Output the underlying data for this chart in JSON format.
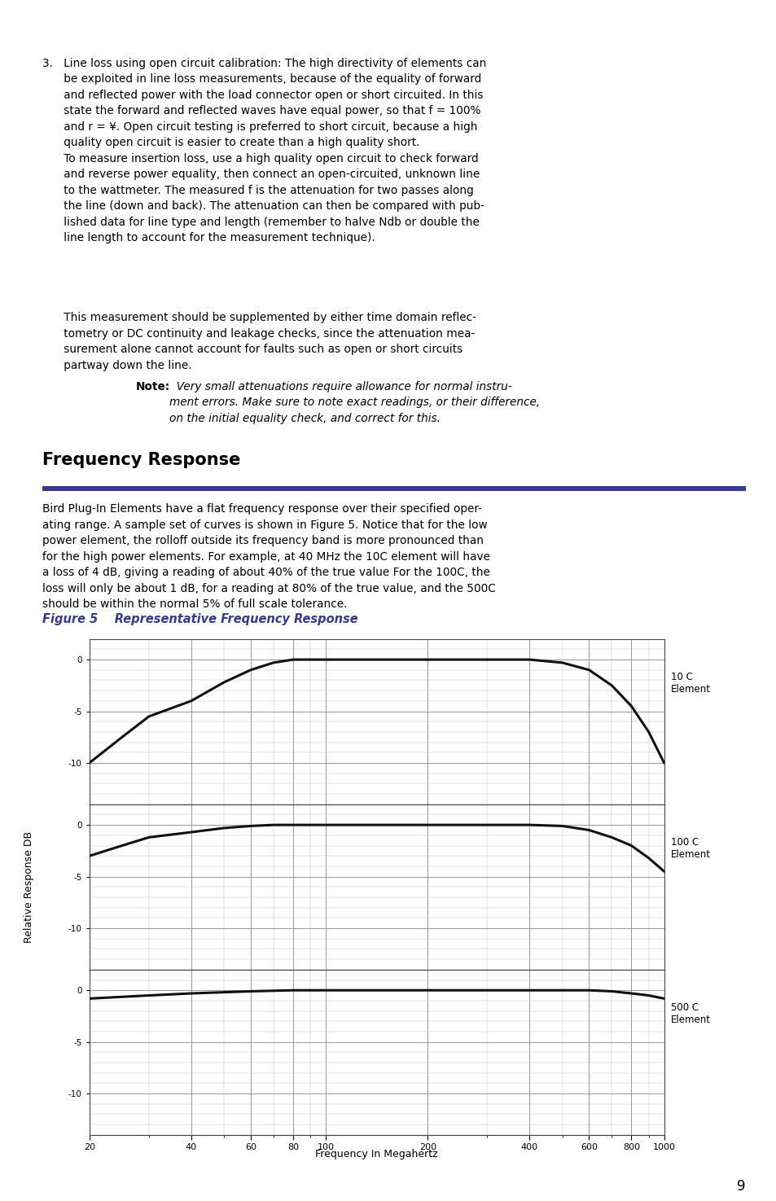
{
  "page_number": "9",
  "section_title": "Frequency Response",
  "section_rule_color": "#3a3a8c",
  "body_text2": "Bird Plug-In Elements have a flat frequency response over their specified oper-\nating range. A sample set of curves is shown in Figure 5. Notice that for the low\npower element, the rolloff outside its frequency band is more pronounced than\nfor the high power elements. For example, at 40 MHz the 10C element will have\na loss of 4 dB, giving a reading of about 40% of the true value For the 100C, the\nloss will only be about 1 dB, for a reading at 80% of the true value, and the 500C\nshould be within the normal 5% of full scale tolerance.",
  "figure_caption": "Figure 5    Representative Frequency Response",
  "figure_caption_color": "#3a3a8c",
  "para1_lines": [
    "3.   Line loss using open circuit calibration: The high directivity of elements can",
    "      be exploited in line loss measurements, because of the equality of forward",
    "      and reflected power with the load connector open or short circuited. In this",
    "      state the forward and reflected waves have equal power, so that f = 100%",
    "      and r = ¥. Open circuit testing is preferred to short circuit, because a high",
    "      quality open circuit is easier to create than a high quality short.",
    "      To measure insertion loss, use a high quality open circuit to check forward",
    "      and reverse power equality, then connect an open-circuited, unknown line",
    "      to the wattmeter. The measured f is the attenuation for two passes along",
    "      the line (down and back). The attenuation can then be compared with pub-",
    "      lished data for line type and length (remember to halve Ndb or double the",
    "      line length to account for the measurement technique)."
  ],
  "para2_lines": [
    "      This measurement should be supplemented by either time domain reflec-",
    "      tometry or DC continuity and leakage checks, since the attenuation mea-",
    "      surement alone cannot account for faults such as open or short circuits",
    "      partway down the line."
  ],
  "note_bold": "Note:",
  "note_italic": "  Very small attenuations require allowance for normal instru-\n      ment errors. Make sure to note exact readings, or their difference,\n      on the initial equality check, and correct for this.",
  "chart": {
    "xlabel": "Frequency In Megahertz",
    "ylabel": "Relative Response DB",
    "xmin": 20,
    "xmax": 1000,
    "xticks": [
      20,
      40,
      60,
      80,
      100,
      200,
      400,
      600,
      800,
      1000
    ],
    "xtick_labels": [
      "20",
      "40",
      "60",
      "80",
      "100",
      "200",
      "400",
      "600",
      "800",
      "1000"
    ],
    "subplots": [
      {
        "label": "10 C\nElement",
        "yticks": [
          0,
          -5,
          -10
        ],
        "ymin": -14,
        "ymax": 2,
        "curve_freq": [
          20,
          25,
          30,
          40,
          50,
          60,
          70,
          80,
          100,
          150,
          200,
          300,
          400,
          500,
          600,
          700,
          800,
          900,
          1000
        ],
        "curve_resp": [
          -10.0,
          -7.5,
          -5.5,
          -4.0,
          -2.2,
          -1.0,
          -0.3,
          0.0,
          0.0,
          0.0,
          0.0,
          0.0,
          0.0,
          -0.3,
          -1.0,
          -2.5,
          -4.5,
          -7.0,
          -10.0
        ]
      },
      {
        "label": "100 C\nElement",
        "yticks": [
          0,
          -5,
          -10
        ],
        "ymin": -14,
        "ymax": 2,
        "curve_freq": [
          20,
          25,
          30,
          40,
          50,
          60,
          70,
          80,
          100,
          150,
          200,
          300,
          400,
          500,
          600,
          700,
          800,
          900,
          1000
        ],
        "curve_resp": [
          -3.0,
          -2.0,
          -1.2,
          -0.7,
          -0.3,
          -0.1,
          0.0,
          0.0,
          0.0,
          0.0,
          0.0,
          0.0,
          0.0,
          -0.1,
          -0.5,
          -1.2,
          -2.0,
          -3.2,
          -4.5
        ]
      },
      {
        "label": "500 C\nElement",
        "yticks": [
          0,
          -5,
          -10
        ],
        "ymin": -14,
        "ymax": 2,
        "curve_freq": [
          20,
          30,
          40,
          60,
          80,
          100,
          150,
          200,
          300,
          400,
          500,
          600,
          700,
          800,
          900,
          1000
        ],
        "curve_resp": [
          -0.8,
          -0.5,
          -0.3,
          -0.1,
          0.0,
          0.0,
          0.0,
          0.0,
          0.0,
          0.0,
          0.0,
          0.0,
          -0.1,
          -0.3,
          -0.5,
          -0.8
        ]
      }
    ],
    "grid_major_color": "#888888",
    "grid_minor_color": "#bbbbbb",
    "curve_color": "#111111",
    "curve_linewidth": 2.2,
    "bg_color": "#ffffff"
  }
}
